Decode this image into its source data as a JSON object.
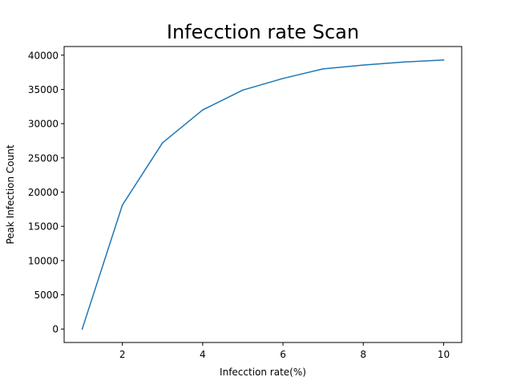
{
  "chart_data": {
    "type": "line",
    "title": "Infecction rate Scan",
    "xlabel": "Infecction rate(%)",
    "ylabel": "Peak Infection Count",
    "xlim": [
      0.55,
      10.45
    ],
    "ylim": [
      -1965,
      41265
    ],
    "xticks": [
      2,
      4,
      6,
      8,
      10
    ],
    "yticks": [
      0,
      5000,
      10000,
      15000,
      20000,
      25000,
      30000,
      35000,
      40000
    ],
    "grid": false,
    "legend": "none",
    "series": [
      {
        "color": "#1f77b4",
        "x": [
          1,
          2,
          3,
          4,
          5,
          6,
          7,
          8,
          9,
          10
        ],
        "y": [
          0,
          18100,
          27200,
          32000,
          34900,
          36600,
          38000,
          38550,
          39000,
          39300
        ]
      }
    ]
  }
}
